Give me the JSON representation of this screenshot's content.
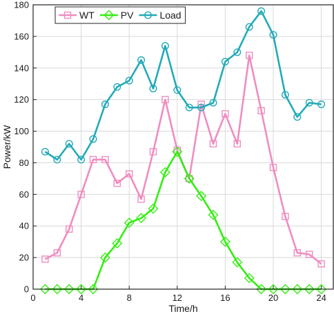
{
  "chart_data": {
    "type": "line",
    "xlabel": "Time/h",
    "ylabel": "Power/kW",
    "xlim": [
      0,
      25
    ],
    "ylim": [
      0,
      180
    ],
    "xticks": [
      0,
      4,
      8,
      12,
      16,
      20,
      24
    ],
    "yticks": [
      0,
      20,
      40,
      60,
      80,
      100,
      120,
      140,
      160,
      180
    ],
    "grid": true,
    "legend_position": "top-left",
    "x": [
      1,
      2,
      3,
      4,
      5,
      6,
      7,
      8,
      9,
      10,
      11,
      12,
      13,
      14,
      15,
      16,
      17,
      18,
      19,
      20,
      21,
      22,
      23,
      24
    ],
    "series": [
      {
        "name": "WT",
        "color": "#f08cc0",
        "marker": "square",
        "values": [
          19,
          23,
          38,
          60,
          82,
          82,
          67,
          73,
          57,
          87,
          120,
          88,
          70,
          117,
          92,
          111,
          92,
          148,
          113,
          77,
          46,
          23,
          22,
          16
        ]
      },
      {
        "name": "PV",
        "color": "#33ee11",
        "marker": "diamond",
        "values": [
          0,
          0,
          0,
          0,
          0,
          20,
          29,
          42,
          45,
          51,
          74,
          87,
          70,
          59,
          47,
          30,
          17,
          7,
          0,
          0,
          0,
          0,
          0,
          0
        ]
      },
      {
        "name": "Load",
        "color": "#22aab8",
        "marker": "circle",
        "values": [
          87,
          82,
          92,
          82,
          95,
          117,
          128,
          132,
          145,
          127,
          154,
          126,
          115,
          115,
          118,
          144,
          150,
          166,
          176,
          161,
          123,
          109,
          118,
          117
        ]
      }
    ]
  }
}
